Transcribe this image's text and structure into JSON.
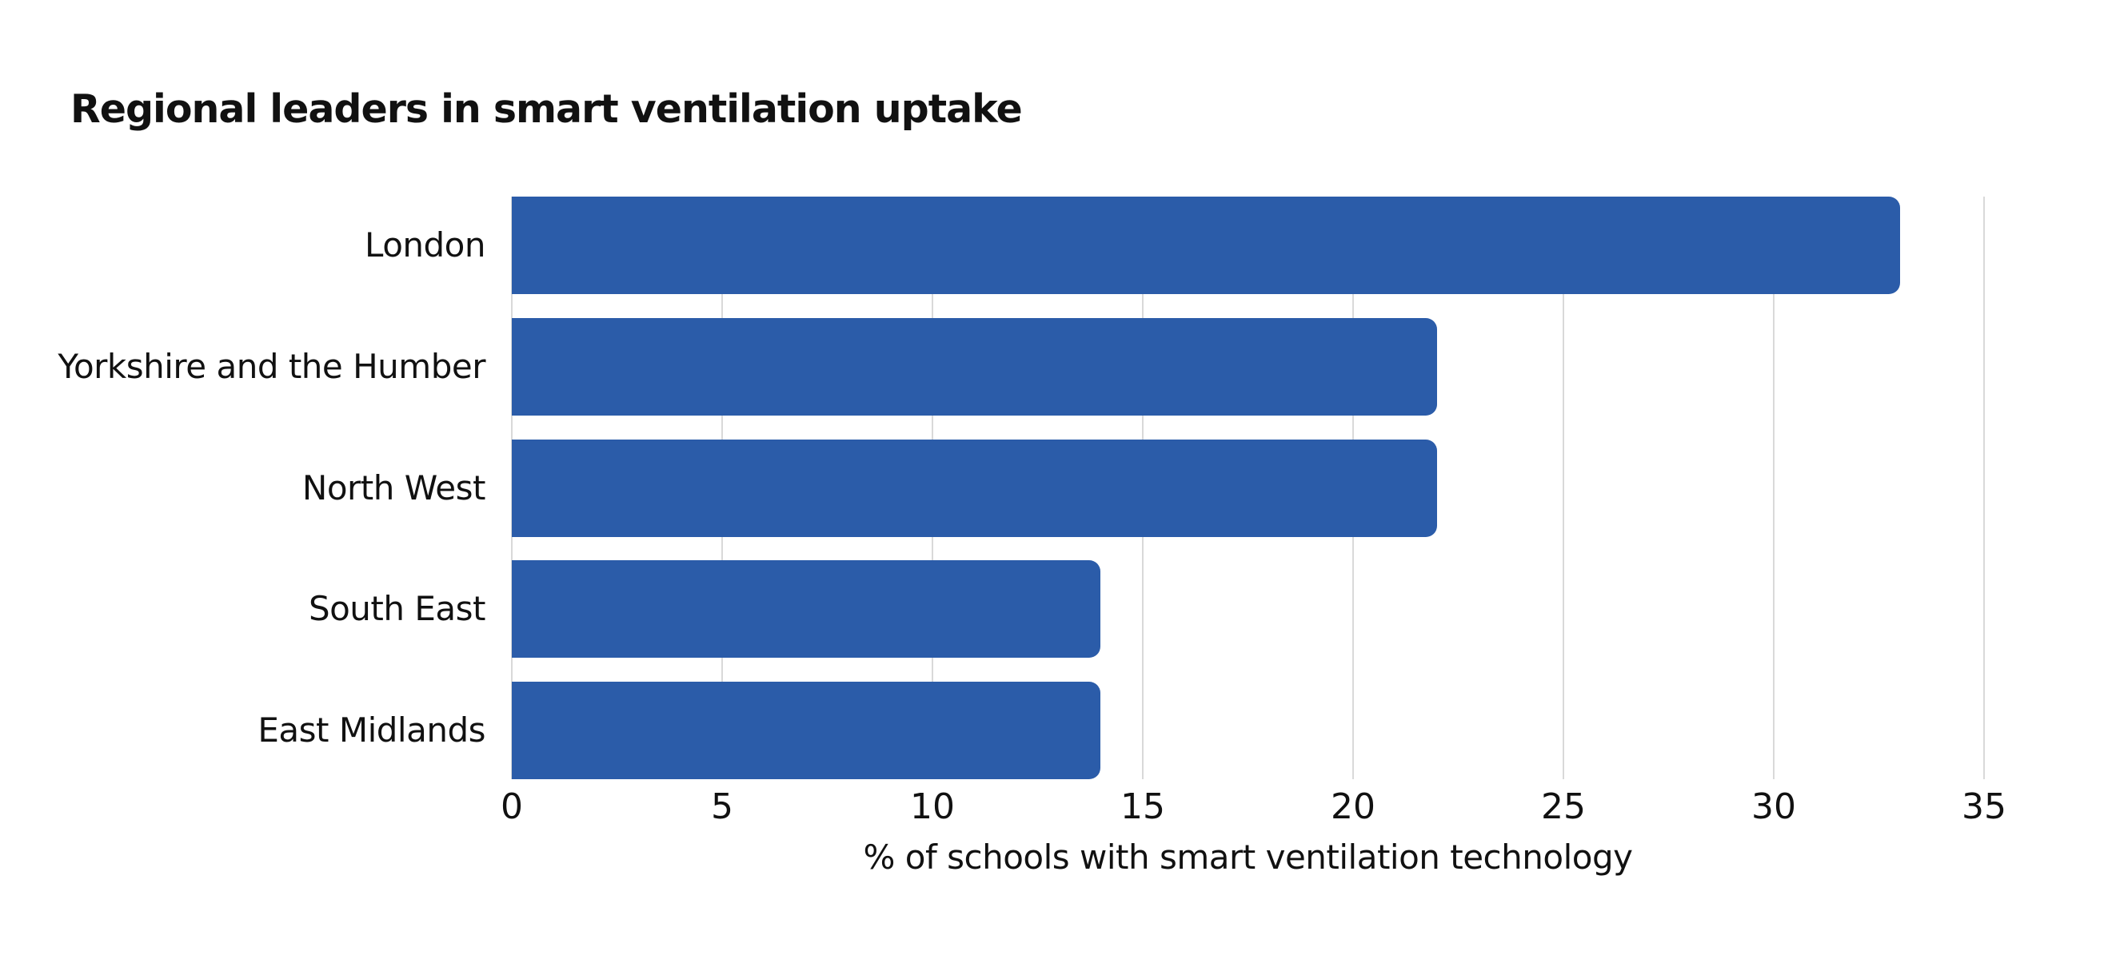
{
  "title": "Regional leaders in smart ventilation uptake",
  "colors": {
    "bar": "#2b5ca9",
    "gridline": "#d9d9d9",
    "text": "#111111",
    "background": "#ffffff"
  },
  "chart_data": {
    "type": "bar",
    "orientation": "horizontal",
    "title": "Regional leaders in smart ventilation uptake",
    "categories": [
      "London",
      "Yorkshire and the Humber",
      "North West",
      "South East",
      "East Midlands"
    ],
    "values": [
      33,
      22,
      22,
      14,
      14
    ],
    "xlabel": "% of schools with smart ventilation technology",
    "ylabel": "",
    "xlim": [
      0,
      35
    ],
    "xticks": [
      0,
      5,
      10,
      15,
      20,
      25,
      30,
      35
    ],
    "grid": true,
    "legend": false
  }
}
